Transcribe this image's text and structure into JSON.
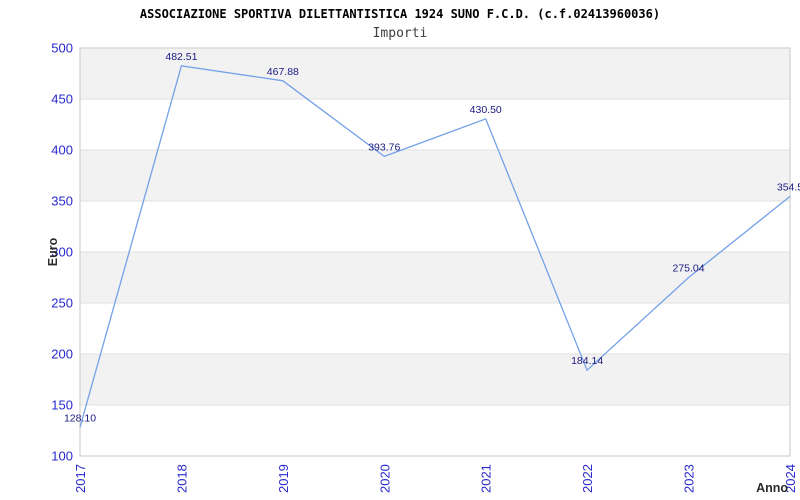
{
  "title": "ASSOCIAZIONE SPORTIVA DILETTANTISTICA 1924 SUNO F.C.D. (c.f.02413960036)",
  "subtitle": "Importi",
  "chart_data": {
    "type": "line",
    "title": "ASSOCIAZIONE SPORTIVA DILETTANTISTICA 1924 SUNO F.C.D. (c.f.02413960036)",
    "subtitle": "Importi",
    "xlabel": "Anno",
    "ylabel": "Euro",
    "categories": [
      "2017",
      "2018",
      "2019",
      "2020",
      "2021",
      "2022",
      "2023",
      "2024"
    ],
    "values": [
      128.1,
      482.51,
      467.88,
      393.76,
      430.5,
      184.14,
      275.04,
      354.5
    ],
    "point_labels": [
      "128.10",
      "482.51",
      "467.88",
      "393.76",
      "430.50",
      "184.14",
      "275.04",
      "354.5"
    ],
    "ylim": [
      100,
      500
    ],
    "y_ticks": [
      500,
      450,
      400,
      350,
      300,
      250,
      200,
      150,
      100
    ],
    "grid": "horizontal-bands",
    "legend": "none",
    "x_tick_rotation_deg": -90,
    "colors": {
      "line": "#74a1e8",
      "tick_label": "#2828cf",
      "point_label": "#1a1a80",
      "band_gray": "#f2f2f2",
      "band_white": "#ffffff",
      "gridline": "#e2e2e2",
      "plot_border": "#d0d0d0",
      "title": "#000000",
      "subtitle": "#404040",
      "axis_title": "#2b2b2b"
    }
  }
}
